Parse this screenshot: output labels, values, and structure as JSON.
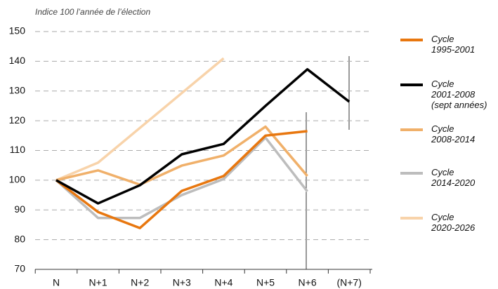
{
  "chart_data": {
    "type": "line",
    "subtitle": "Indice 100 l’année de l’élection",
    "categories": [
      "N",
      "N+1",
      "N+2",
      "N+3",
      "N+4",
      "N+5",
      "N+6",
      "(N+7)"
    ],
    "ylim": [
      70,
      150
    ],
    "yticks": [
      70,
      80,
      90,
      100,
      110,
      120,
      130,
      140,
      150
    ],
    "grid": true,
    "legend": "right",
    "series": [
      {
        "name": "Cycle\n1995-2001",
        "color": "#e8770f",
        "values": [
          100,
          89.3,
          83.9,
          96.4,
          101.4,
          115,
          116.5,
          null
        ]
      },
      {
        "name": "Cycle\n2001-2008\n(sept années)",
        "color": "#000000",
        "values": [
          100,
          92.2,
          98.3,
          108.7,
          112.2,
          125,
          137.3,
          126.4
        ]
      },
      {
        "name": "Cycle\n2008-2014",
        "color": "#f0b06a",
        "values": [
          100,
          103.3,
          98.5,
          104.9,
          108.3,
          118,
          101.4,
          null
        ]
      },
      {
        "name": "Cycle\n2014-2020",
        "color": "#bdbdbd",
        "values": [
          100,
          87.3,
          87.3,
          95,
          100.4,
          114.3,
          96.2,
          null
        ]
      },
      {
        "name": "Cycle\n 2020-2026",
        "color": "#f8d3aa",
        "values": [
          100,
          105.9,
          117.6,
          129.3,
          141,
          null,
          null,
          null
        ]
      }
    ]
  }
}
